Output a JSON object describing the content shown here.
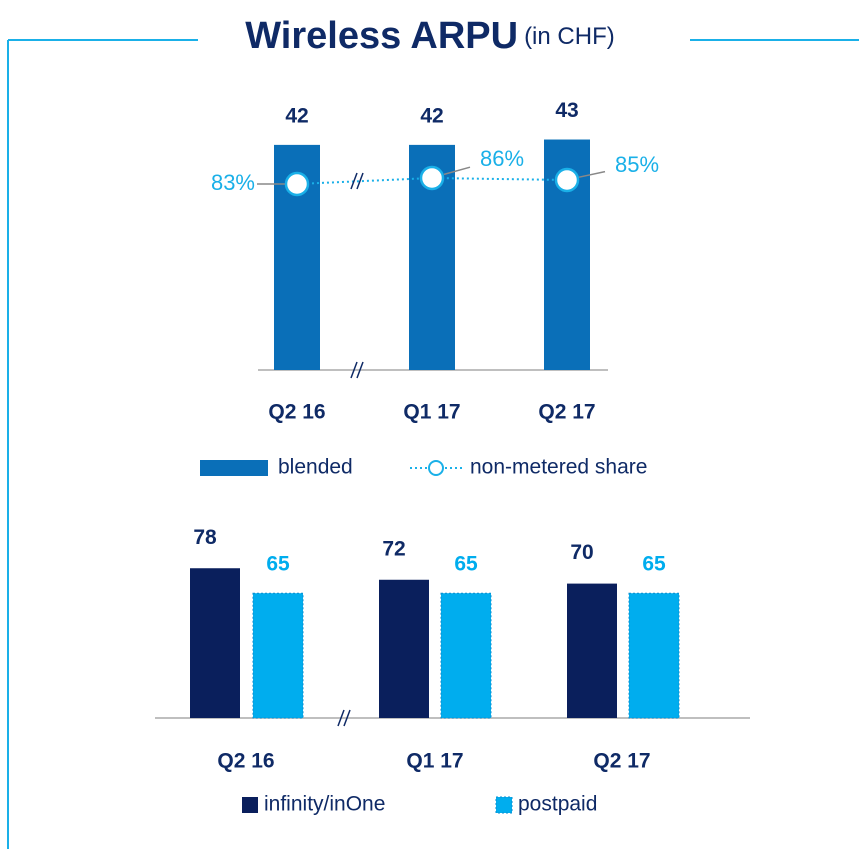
{
  "title": "Wireless ARPU",
  "subtitle": "(in CHF)",
  "chart_data": [
    {
      "type": "bar",
      "categories": [
        "Q2 16",
        "Q1 17",
        "Q2 17"
      ],
      "ylim": [
        0,
        50
      ],
      "y2lim": [
        -10,
        124
      ],
      "series": [
        {
          "name": "blended",
          "color": "#0a6fb8",
          "values": [
            42,
            42,
            43
          ]
        },
        {
          "name": "non-metered share",
          "type": "line",
          "axis": "y2",
          "color": "#1ab0e8",
          "values": [
            83,
            86,
            85
          ],
          "value_labels": [
            "83%",
            "86%",
            "85%"
          ]
        }
      ]
    },
    {
      "type": "bar",
      "categories": [
        "Q2 16",
        "Q1 17",
        "Q2 17"
      ],
      "ylim": [
        0,
        100
      ],
      "series": [
        {
          "name": "infinity/inOne",
          "color": "#0a1f5c",
          "values": [
            78,
            72,
            70
          ]
        },
        {
          "name": "postpaid",
          "color": "#00adee",
          "values": [
            65,
            65,
            65
          ]
        }
      ]
    }
  ]
}
